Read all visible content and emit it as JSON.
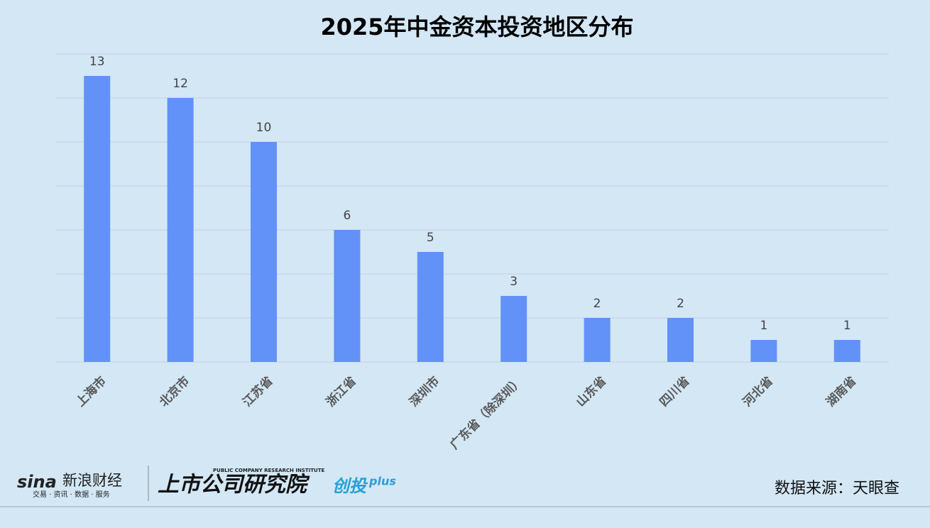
{
  "chart_data": {
    "type": "bar",
    "title": "2025年中金资本投资地区分布",
    "categories": [
      "上海市",
      "北京市",
      "江苏省",
      "浙江省",
      "深圳市",
      "广东省（除深圳）",
      "山东省",
      "四川省",
      "河北省",
      "湖南省"
    ],
    "values": [
      13,
      12,
      10,
      6,
      5,
      3,
      2,
      2,
      1,
      1
    ],
    "color": "#6292f7",
    "ylim": [
      0,
      14
    ],
    "yticks": [
      0,
      2,
      4,
      6,
      8,
      10,
      12,
      14
    ],
    "grid": true
  },
  "footer": {
    "brand": "新浪财经",
    "brand_logo": "sina",
    "brand_tagline": "交易 · 资讯 · 数据 · 服务",
    "institute": "上市公司研究院",
    "institute_en": "PUBLIC COMPANY RESEARCH INSTITUTE",
    "product": "创投",
    "product_suffix": "plus",
    "source": "数据来源：天眼查"
  }
}
